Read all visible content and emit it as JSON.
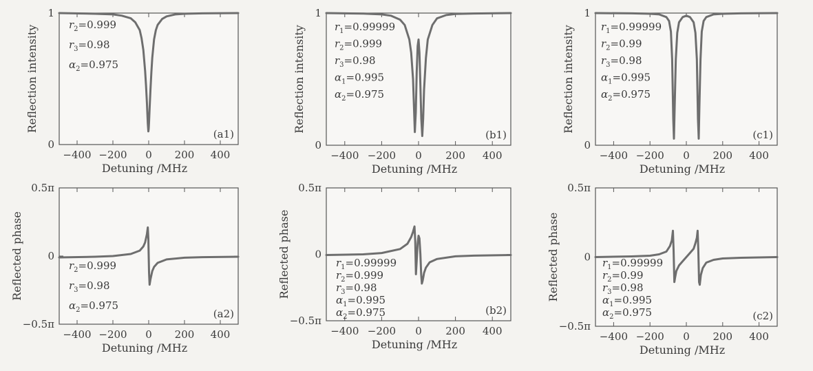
{
  "colors": {
    "curve": "#6e6e6e",
    "axes": "#555555",
    "text": "#3a3a3a",
    "background": "#f4f3f0"
  },
  "chart_data": [
    {
      "id": "a1",
      "type": "line",
      "tag": "(a1)",
      "xlabel": "Detuning /MHz",
      "ylabel": "Reflection intensity",
      "xlim": [
        -500,
        500
      ],
      "ylim": [
        0,
        1
      ],
      "xticks": [
        -400,
        -200,
        0,
        200,
        400
      ],
      "xtick_labels": [
        "−400",
        "−200",
        "0",
        "200",
        "400"
      ],
      "yticks": [
        0,
        1
      ],
      "ytick_labels": [
        "0",
        "1"
      ],
      "params": [
        {
          "sym": "r",
          "sub": "2",
          "val": "=0.999"
        },
        {
          "sym": "r",
          "sub": "3",
          "val": "=0.98"
        },
        {
          "sym": "α",
          "sub": "2",
          "val": "=0.975"
        }
      ],
      "series": [
        {
          "x": [
            -500,
            -300,
            -200,
            -150,
            -100,
            -75,
            -50,
            -40,
            -30,
            -20,
            -15,
            -10,
            -5,
            -2,
            0,
            2,
            5,
            10,
            15,
            20,
            30,
            40,
            50,
            75,
            100,
            150,
            200,
            300,
            500
          ],
          "y": [
            1,
            0.995,
            0.99,
            0.98,
            0.96,
            0.93,
            0.87,
            0.81,
            0.72,
            0.56,
            0.45,
            0.32,
            0.16,
            0.1,
            0.12,
            0.17,
            0.27,
            0.42,
            0.55,
            0.66,
            0.8,
            0.87,
            0.91,
            0.955,
            0.975,
            0.99,
            0.995,
            0.998,
            1
          ]
        }
      ]
    },
    {
      "id": "b1",
      "type": "line",
      "tag": "(b1)",
      "xlabel": "Detuning /MHz",
      "ylabel": "Reflection intensity",
      "xlim": [
        -500,
        500
      ],
      "ylim": [
        0,
        1
      ],
      "xticks": [
        -400,
        -200,
        0,
        200,
        400
      ],
      "xtick_labels": [
        "−400",
        "−200",
        "0",
        "200",
        "400"
      ],
      "yticks": [
        0,
        1
      ],
      "ytick_labels": [
        "0",
        "1"
      ],
      "params": [
        {
          "sym": "r",
          "sub": "1",
          "val": "=0.99999"
        },
        {
          "sym": "r",
          "sub": "2",
          "val": "=0.999"
        },
        {
          "sym": "r",
          "sub": "3",
          "val": "=0.98"
        },
        {
          "sym": "α",
          "sub": "1",
          "val": "=0.995"
        },
        {
          "sym": "α",
          "sub": "2",
          "val": "=0.975"
        }
      ],
      "series": [
        {
          "x": [
            -500,
            -300,
            -200,
            -150,
            -100,
            -75,
            -50,
            -40,
            -30,
            -25,
            -20,
            -15,
            -10,
            -5,
            0,
            5,
            10,
            15,
            20,
            25,
            30,
            40,
            50,
            75,
            100,
            150,
            200,
            300,
            500
          ],
          "y": [
            1,
            0.996,
            0.99,
            0.98,
            0.95,
            0.91,
            0.8,
            0.7,
            0.5,
            0.3,
            0.1,
            0.25,
            0.55,
            0.75,
            0.8,
            0.7,
            0.45,
            0.2,
            0.07,
            0.2,
            0.42,
            0.66,
            0.8,
            0.91,
            0.96,
            0.985,
            0.993,
            0.997,
            1
          ]
        }
      ]
    },
    {
      "id": "c1",
      "type": "line",
      "tag": "(c1)",
      "xlabel": "Detuning /MHz",
      "ylabel": "Reflection intensity",
      "xlim": [
        -500,
        500
      ],
      "ylim": [
        0,
        1
      ],
      "xticks": [
        -400,
        -200,
        0,
        200,
        400
      ],
      "xtick_labels": [
        "−400",
        "−200",
        "0",
        "200",
        "400"
      ],
      "yticks": [
        0,
        1
      ],
      "ytick_labels": [
        "0",
        "1"
      ],
      "params": [
        {
          "sym": "r",
          "sub": "1",
          "val": "=0.99999"
        },
        {
          "sym": "r",
          "sub": "2",
          "val": "=0.99"
        },
        {
          "sym": "r",
          "sub": "3",
          "val": "=0.98"
        },
        {
          "sym": "α",
          "sub": "1",
          "val": "=0.995"
        },
        {
          "sym": "α",
          "sub": "2",
          "val": "=0.975"
        }
      ],
      "series": [
        {
          "x": [
            -500,
            -300,
            -200,
            -150,
            -110,
            -95,
            -85,
            -78,
            -72,
            -68,
            -64,
            -58,
            -50,
            -40,
            -20,
            0,
            20,
            40,
            50,
            58,
            64,
            68,
            72,
            78,
            85,
            95,
            110,
            150,
            200,
            300,
            500
          ],
          "y": [
            1,
            0.998,
            0.995,
            0.99,
            0.97,
            0.94,
            0.86,
            0.65,
            0.2,
            0.05,
            0.3,
            0.65,
            0.85,
            0.93,
            0.97,
            0.98,
            0.97,
            0.93,
            0.85,
            0.65,
            0.2,
            0.05,
            0.3,
            0.65,
            0.86,
            0.94,
            0.97,
            0.99,
            0.995,
            0.998,
            1
          ]
        }
      ]
    },
    {
      "id": "a2",
      "type": "line",
      "tag": "(a2)",
      "xlabel": "Detuning /MHz",
      "ylabel": "Reflected phase",
      "xlim": [
        -500,
        500
      ],
      "ylim": [
        -0.5,
        0.5
      ],
      "yunit": "π",
      "xticks": [
        -400,
        -200,
        0,
        200,
        400
      ],
      "xtick_labels": [
        "−400",
        "−200",
        "0",
        "200",
        "400"
      ],
      "yticks": [
        -0.5,
        0,
        0.5
      ],
      "ytick_labels": [
        "−0.5π",
        "0",
        "0.5π"
      ],
      "params": [
        {
          "sym": "r",
          "sub": "2",
          "val": "=0.999"
        },
        {
          "sym": "r",
          "sub": "3",
          "val": "=0.98"
        },
        {
          "sym": "α",
          "sub": "2",
          "val": "=0.975"
        }
      ],
      "series": [
        {
          "x": [
            -500,
            -300,
            -200,
            -100,
            -50,
            -30,
            -20,
            -10,
            -5,
            -2,
            0,
            2,
            5,
            10,
            20,
            30,
            50,
            100,
            200,
            300,
            500
          ],
          "y": [
            -0.01,
            -0.005,
            0,
            0.015,
            0.04,
            0.07,
            0.1,
            0.16,
            0.21,
            0.13,
            0,
            -0.12,
            -0.21,
            -0.17,
            -0.11,
            -0.08,
            -0.05,
            -0.025,
            -0.012,
            -0.008,
            -0.005
          ]
        }
      ]
    },
    {
      "id": "b2",
      "type": "line",
      "tag": "(b2)",
      "xlabel": "Detuning /MHz",
      "ylabel": "Reflected phase",
      "xlim": [
        -500,
        500
      ],
      "ylim": [
        -0.5,
        0.5
      ],
      "yunit": "π",
      "xticks": [
        -400,
        -200,
        0,
        200,
        400
      ],
      "xtick_labels": [
        "−400",
        "−200",
        "0",
        "200",
        "400"
      ],
      "yticks": [
        -0.5,
        0,
        0.5
      ],
      "ytick_labels": [
        "−0.5π",
        "0",
        "0.5π"
      ],
      "params": [
        {
          "sym": "r",
          "sub": "1",
          "val": "=0.99999"
        },
        {
          "sym": "r",
          "sub": "2",
          "val": "=0.999"
        },
        {
          "sym": "r",
          "sub": "3",
          "val": "=0.98"
        },
        {
          "sym": "α",
          "sub": "1",
          "val": "=0.995"
        },
        {
          "sym": "α",
          "sub": "2",
          "val": "=0.975"
        }
      ],
      "series": [
        {
          "x": [
            -500,
            -300,
            -200,
            -100,
            -60,
            -40,
            -30,
            -22,
            -18,
            -14,
            -10,
            -5,
            0,
            5,
            10,
            14,
            18,
            22,
            26,
            30,
            40,
            60,
            100,
            200,
            300,
            500
          ],
          "y": [
            -0.005,
            0,
            0.01,
            0.04,
            0.08,
            0.13,
            0.17,
            0.21,
            0.1,
            -0.15,
            -0.05,
            0.08,
            0.14,
            0.12,
            0,
            -0.15,
            -0.22,
            -0.2,
            -0.17,
            -0.14,
            -0.1,
            -0.06,
            -0.035,
            -0.015,
            -0.01,
            -0.005
          ]
        }
      ]
    },
    {
      "id": "c2",
      "type": "line",
      "tag": "(c2)",
      "xlabel": "Detuning /MHz",
      "ylabel": "Reflected phase",
      "xlim": [
        -500,
        500
      ],
      "ylim": [
        -0.5,
        0.5
      ],
      "yunit": "π",
      "xticks": [
        -400,
        -200,
        0,
        200,
        400
      ],
      "xtick_labels": [
        "−400",
        "−200",
        "0",
        "200",
        "400"
      ],
      "yticks": [
        -0.5,
        0,
        0.5
      ],
      "ytick_labels": [
        "−0.5π",
        "0",
        "0.5π"
      ],
      "params": [
        {
          "sym": "r",
          "sub": "1",
          "val": "=0.99999"
        },
        {
          "sym": "r",
          "sub": "2",
          "val": "=0.99"
        },
        {
          "sym": "r",
          "sub": "3",
          "val": "=0.98"
        },
        {
          "sym": "α",
          "sub": "1",
          "val": "=0.995"
        },
        {
          "sym": "α",
          "sub": "2",
          "val": "=0.975"
        }
      ],
      "series": [
        {
          "x": [
            -500,
            -300,
            -200,
            -150,
            -110,
            -90,
            -80,
            -74,
            -70,
            -66,
            -62,
            -55,
            -40,
            -20,
            0,
            20,
            40,
            50,
            58,
            62,
            66,
            70,
            74,
            80,
            90,
            110,
            150,
            200,
            300,
            500
          ],
          "y": [
            0,
            0.005,
            0.01,
            0.02,
            0.04,
            0.08,
            0.12,
            0.19,
            0.05,
            -0.18,
            -0.15,
            -0.1,
            -0.06,
            -0.03,
            0,
            0.03,
            0.06,
            0.1,
            0.14,
            0.19,
            0.05,
            -0.18,
            -0.2,
            -0.13,
            -0.08,
            -0.04,
            -0.02,
            -0.01,
            -0.005,
            0
          ]
        }
      ]
    }
  ]
}
